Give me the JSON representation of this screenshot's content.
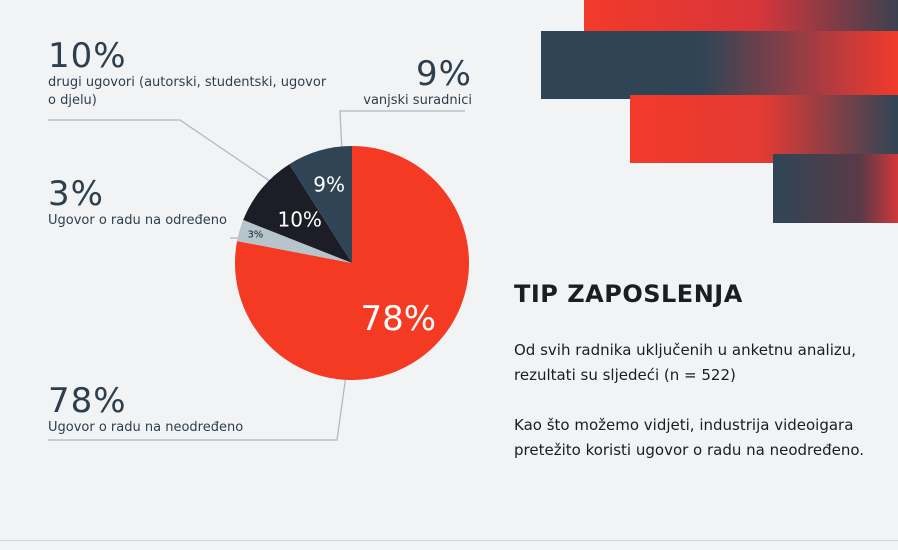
{
  "chart_data": {
    "type": "pie",
    "slices": [
      {
        "label": "Ugovor o radu na neodređeno",
        "value": 78,
        "value_text": "78%",
        "color": "#f43a22",
        "text_color": "#ffffff"
      },
      {
        "label": "Ugovor o radu na određeno",
        "value": 3,
        "value_text": "3%",
        "color": "#b5c5cb",
        "text_color": "#1c1f24"
      },
      {
        "label": "drugi ugovori (autorski, studentski, ugovor o djelu)",
        "value": 10,
        "value_text": "10%",
        "color": "#1c1d27",
        "text_color": "#ffffff"
      },
      {
        "label": "vanjski suradnici",
        "value": 9,
        "value_text": "9%",
        "color": "#2f4556",
        "text_color": "#ffffff"
      }
    ]
  },
  "labels": {
    "other": {
      "pct": "10%",
      "text": "drugi ugovori (autorski, studentski, ugovor o djelu)"
    },
    "external": {
      "pct": "9%",
      "text": "vanjski suradnici"
    },
    "fixed_term": {
      "pct": "3%",
      "text": "Ugovor o radu na određeno"
    },
    "permanent": {
      "pct": "78%",
      "text": "Ugovor o radu na neodređeno"
    }
  },
  "info": {
    "title": "TIP ZAPOSLENJA",
    "para1": "Od svih radnika uključenih u anketnu analizu, rezultati su sljedeći (n = 522)",
    "para2": "Kao što možemo vidjeti, industrija videoigara pretežito koristi ugovor o radu na neodređeno."
  },
  "colors": {
    "background": "#f2f3f4",
    "accent_red": "#f23a2a",
    "accent_navy": "#2f4556",
    "leader_line": "#a9bcc4"
  }
}
